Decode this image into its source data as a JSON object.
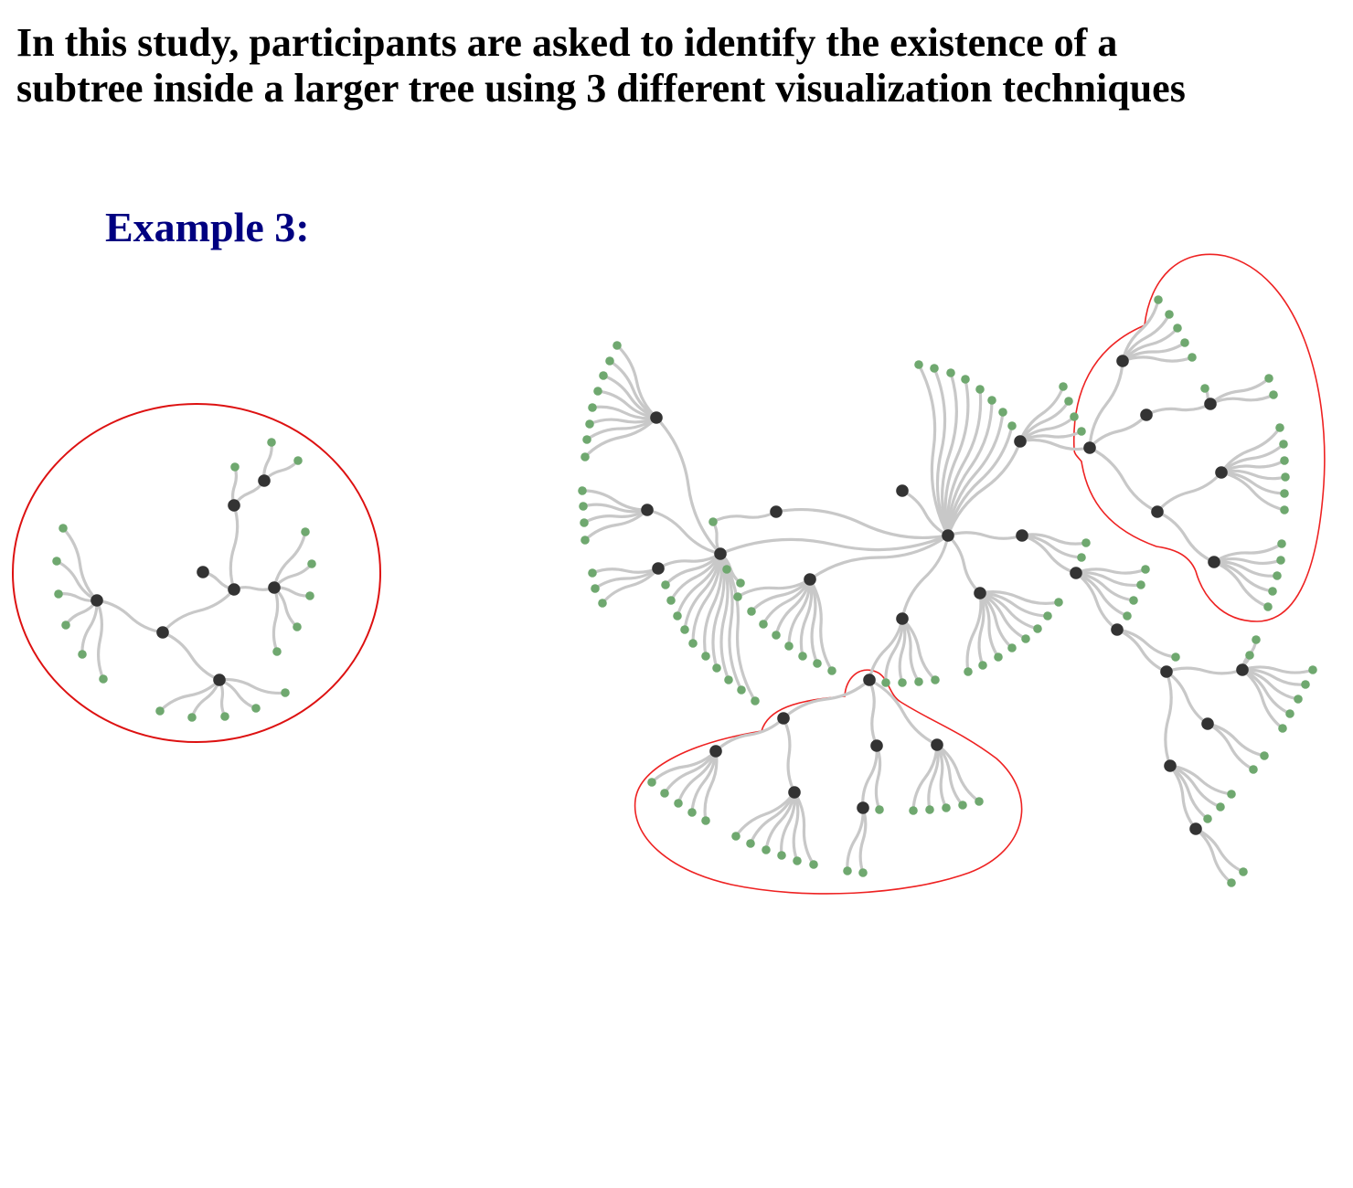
{
  "heading": {
    "line1": "In this study, participants are asked to identify the existence of a",
    "line2": "subtree inside a larger tree using 3 different visualization techniques"
  },
  "example_title": "Example 3:",
  "colors": {
    "title": "#000000",
    "example_title": "#000080",
    "edge": "#c8c8c8",
    "leaf_node": "#6fa86f",
    "inner_node": "#333333",
    "highlight_outline": "#ee2222"
  },
  "diagram": {
    "query_subtree": {
      "highlighted": true,
      "node_kinds": [
        "inner",
        "leaf"
      ]
    },
    "main_tree": {
      "highlighted_regions": 2,
      "node_kinds": [
        "inner",
        "leaf"
      ]
    }
  }
}
